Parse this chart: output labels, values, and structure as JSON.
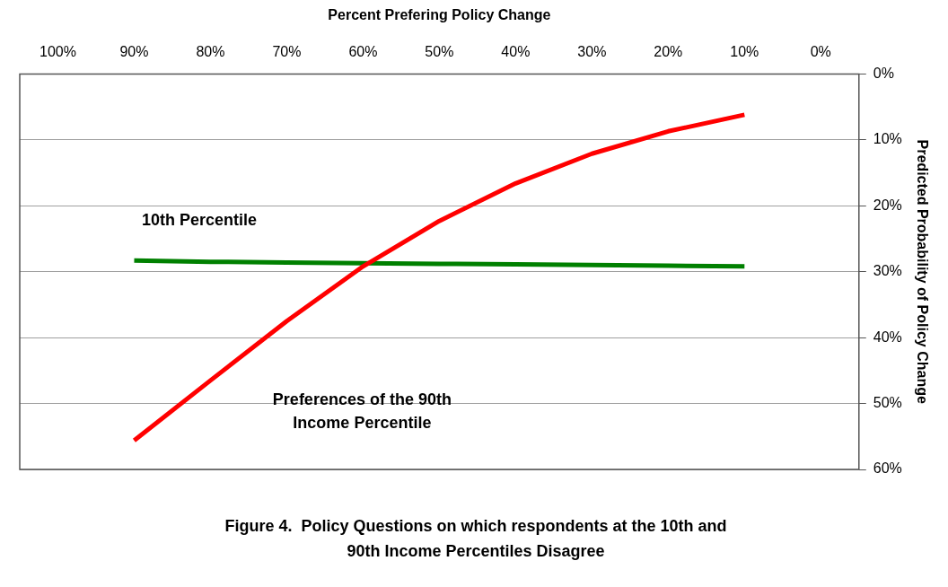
{
  "chart_data": {
    "type": "line",
    "title": "Figure 4.  Policy Questions on which respondents at the 10th and 90th Income Percentiles Disagree",
    "xlabel": "Percent Prefering Policy Change",
    "ylabel": "Predicted Probability of Policy Change",
    "categories": [
      "100%",
      "90%",
      "80%",
      "70%",
      "60%",
      "50%",
      "40%",
      "30%",
      "20%",
      "10%",
      "0%"
    ],
    "series": [
      {
        "name": "Preferences of the 90th Income Percentile",
        "color": "#ff0000",
        "values": [
          null,
          55.6,
          46.5,
          37.5,
          29.2,
          22.3,
          16.6,
          12.1,
          8.7,
          6.2,
          null
        ]
      },
      {
        "name": "10th Percentile",
        "color": "#008000",
        "values": [
          null,
          28.3,
          28.5,
          28.6,
          28.7,
          28.8,
          28.9,
          29.0,
          29.1,
          29.2,
          null
        ]
      }
    ],
    "ylim": [
      60,
      0
    ],
    "yticks": [
      {
        "value": 0,
        "label": "0%"
      },
      {
        "value": 10,
        "label": "10%"
      },
      {
        "value": 20,
        "label": "20%"
      },
      {
        "value": 30,
        "label": "30%"
      },
      {
        "value": 40,
        "label": "40%"
      },
      {
        "value": 50,
        "label": "50%"
      },
      {
        "value": 60,
        "label": "60%"
      }
    ],
    "grid": "y",
    "legend": false,
    "marker": "none",
    "line_style": "solid"
  }
}
